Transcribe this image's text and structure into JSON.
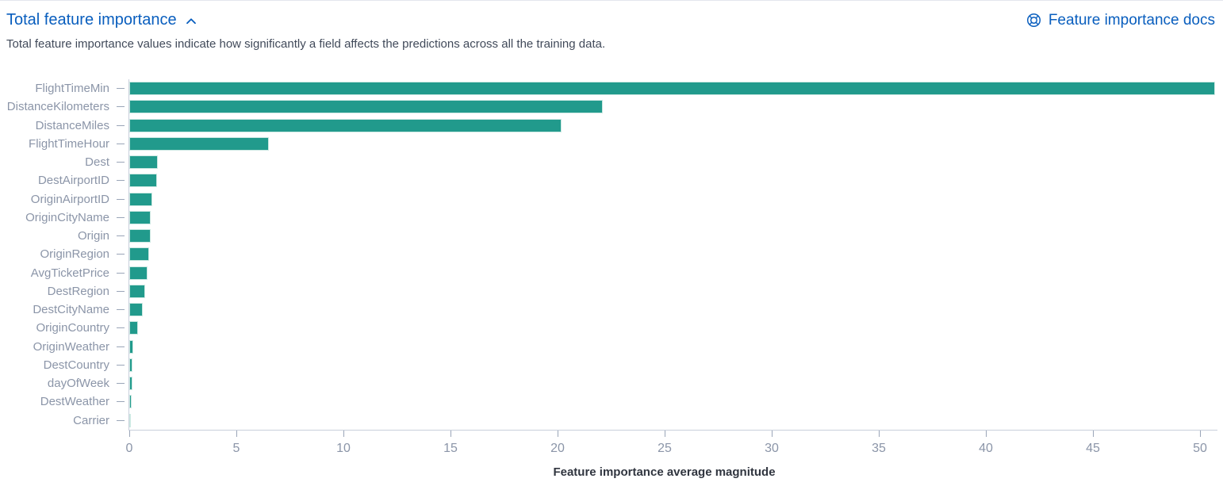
{
  "header": {
    "title": "Total feature importance",
    "docs_link_label": "Feature importance docs"
  },
  "subtitle": "Total feature importance values indicate how significantly a field affects the predictions across all the training data.",
  "icons": {
    "collapse": "chevron-up-icon",
    "docs": "life-ring-help-icon"
  },
  "colors": {
    "bar_fill": "#219a8c",
    "bar_border": "#cde9e3",
    "link_blue": "#095EBE",
    "axis_label": "#8b95a8",
    "axis_line": "#c8cfdb",
    "subtitle_text": "#414a5a",
    "axis_title_text": "#30353f"
  },
  "chart_data": {
    "type": "bar",
    "orientation": "horizontal",
    "title": "",
    "xlabel": "Feature importance average magnitude",
    "ylabel": "",
    "xlim": [
      0,
      50.8
    ],
    "xticks": [
      0,
      5,
      10,
      15,
      20,
      25,
      30,
      35,
      40,
      45,
      50
    ],
    "grid": false,
    "legend": false,
    "categories": [
      "FlightTimeMin",
      "DistanceKilometers",
      "DistanceMiles",
      "FlightTimeHour",
      "Dest",
      "DestAirportID",
      "OriginAirportID",
      "OriginCityName",
      "Origin",
      "OriginRegion",
      "AvgTicketPrice",
      "DestRegion",
      "DestCityName",
      "OriginCountry",
      "OriginWeather",
      "DestCountry",
      "dayOfWeek",
      "DestWeather",
      "Carrier"
    ],
    "values": [
      50.7,
      22.1,
      20.2,
      6.5,
      1.33,
      1.3,
      1.07,
      1.0,
      1.0,
      0.93,
      0.85,
      0.74,
      0.63,
      0.41,
      0.19,
      0.15,
      0.15,
      0.11,
      0.04
    ]
  }
}
